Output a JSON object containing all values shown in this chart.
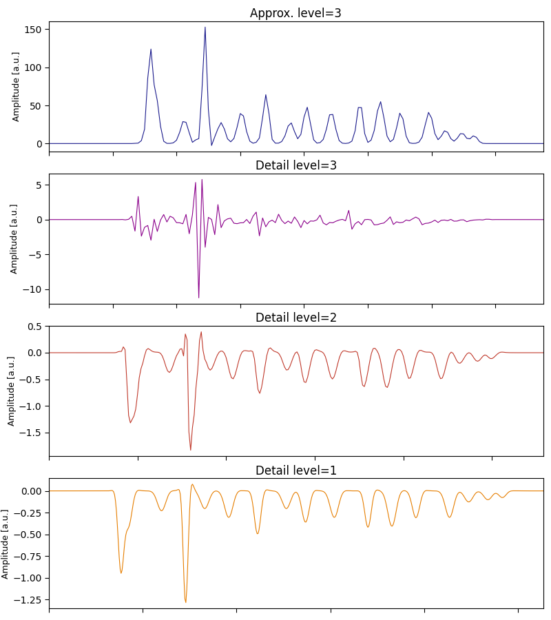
{
  "titles": [
    "Approx. level=3",
    "Detail level=3",
    "Detail level=2",
    "Detail level=1"
  ],
  "colors": [
    "#1a1a8c",
    "#8b008b",
    "#c0392b",
    "#e67e00"
  ],
  "ylabel": "Amplitude [a.u.]",
  "figsize": [
    8.0,
    9.0
  ],
  "dpi": 100,
  "background_color": "#ffffff"
}
